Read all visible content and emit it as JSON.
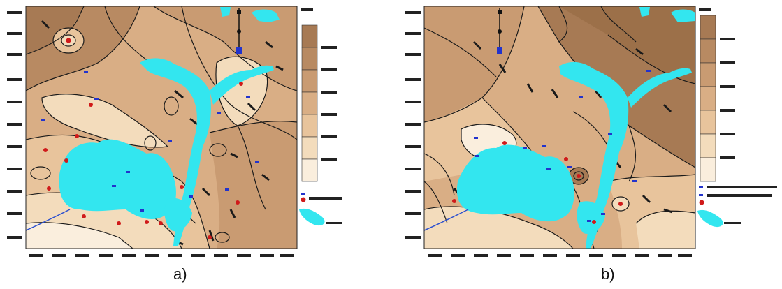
{
  "figure": {
    "panels": [
      {
        "id": "a",
        "caption": "a)",
        "legend": {
          "colors": [
            "#a77a54",
            "#b88a62",
            "#c99b72",
            "#d9ae85",
            "#e8c49c",
            "#f3dcbc",
            "#faeedd"
          ]
        }
      },
      {
        "id": "b",
        "caption": "b)",
        "legend": {
          "colors": [
            "#a77a54",
            "#b88a62",
            "#c99b72",
            "#d9ae85",
            "#e8c49c",
            "#f3dcbc",
            "#faeedd"
          ]
        }
      }
    ],
    "colors": {
      "water": "#33e6ef",
      "contour": "#1a1a1a",
      "well_point": "#d01a1a",
      "well_label": "#2233cc",
      "river_line": "#2a4fd0"
    },
    "icons": [
      "north-arrow-icon",
      "legend-well-marker-icon",
      "legend-lake-icon"
    ]
  }
}
